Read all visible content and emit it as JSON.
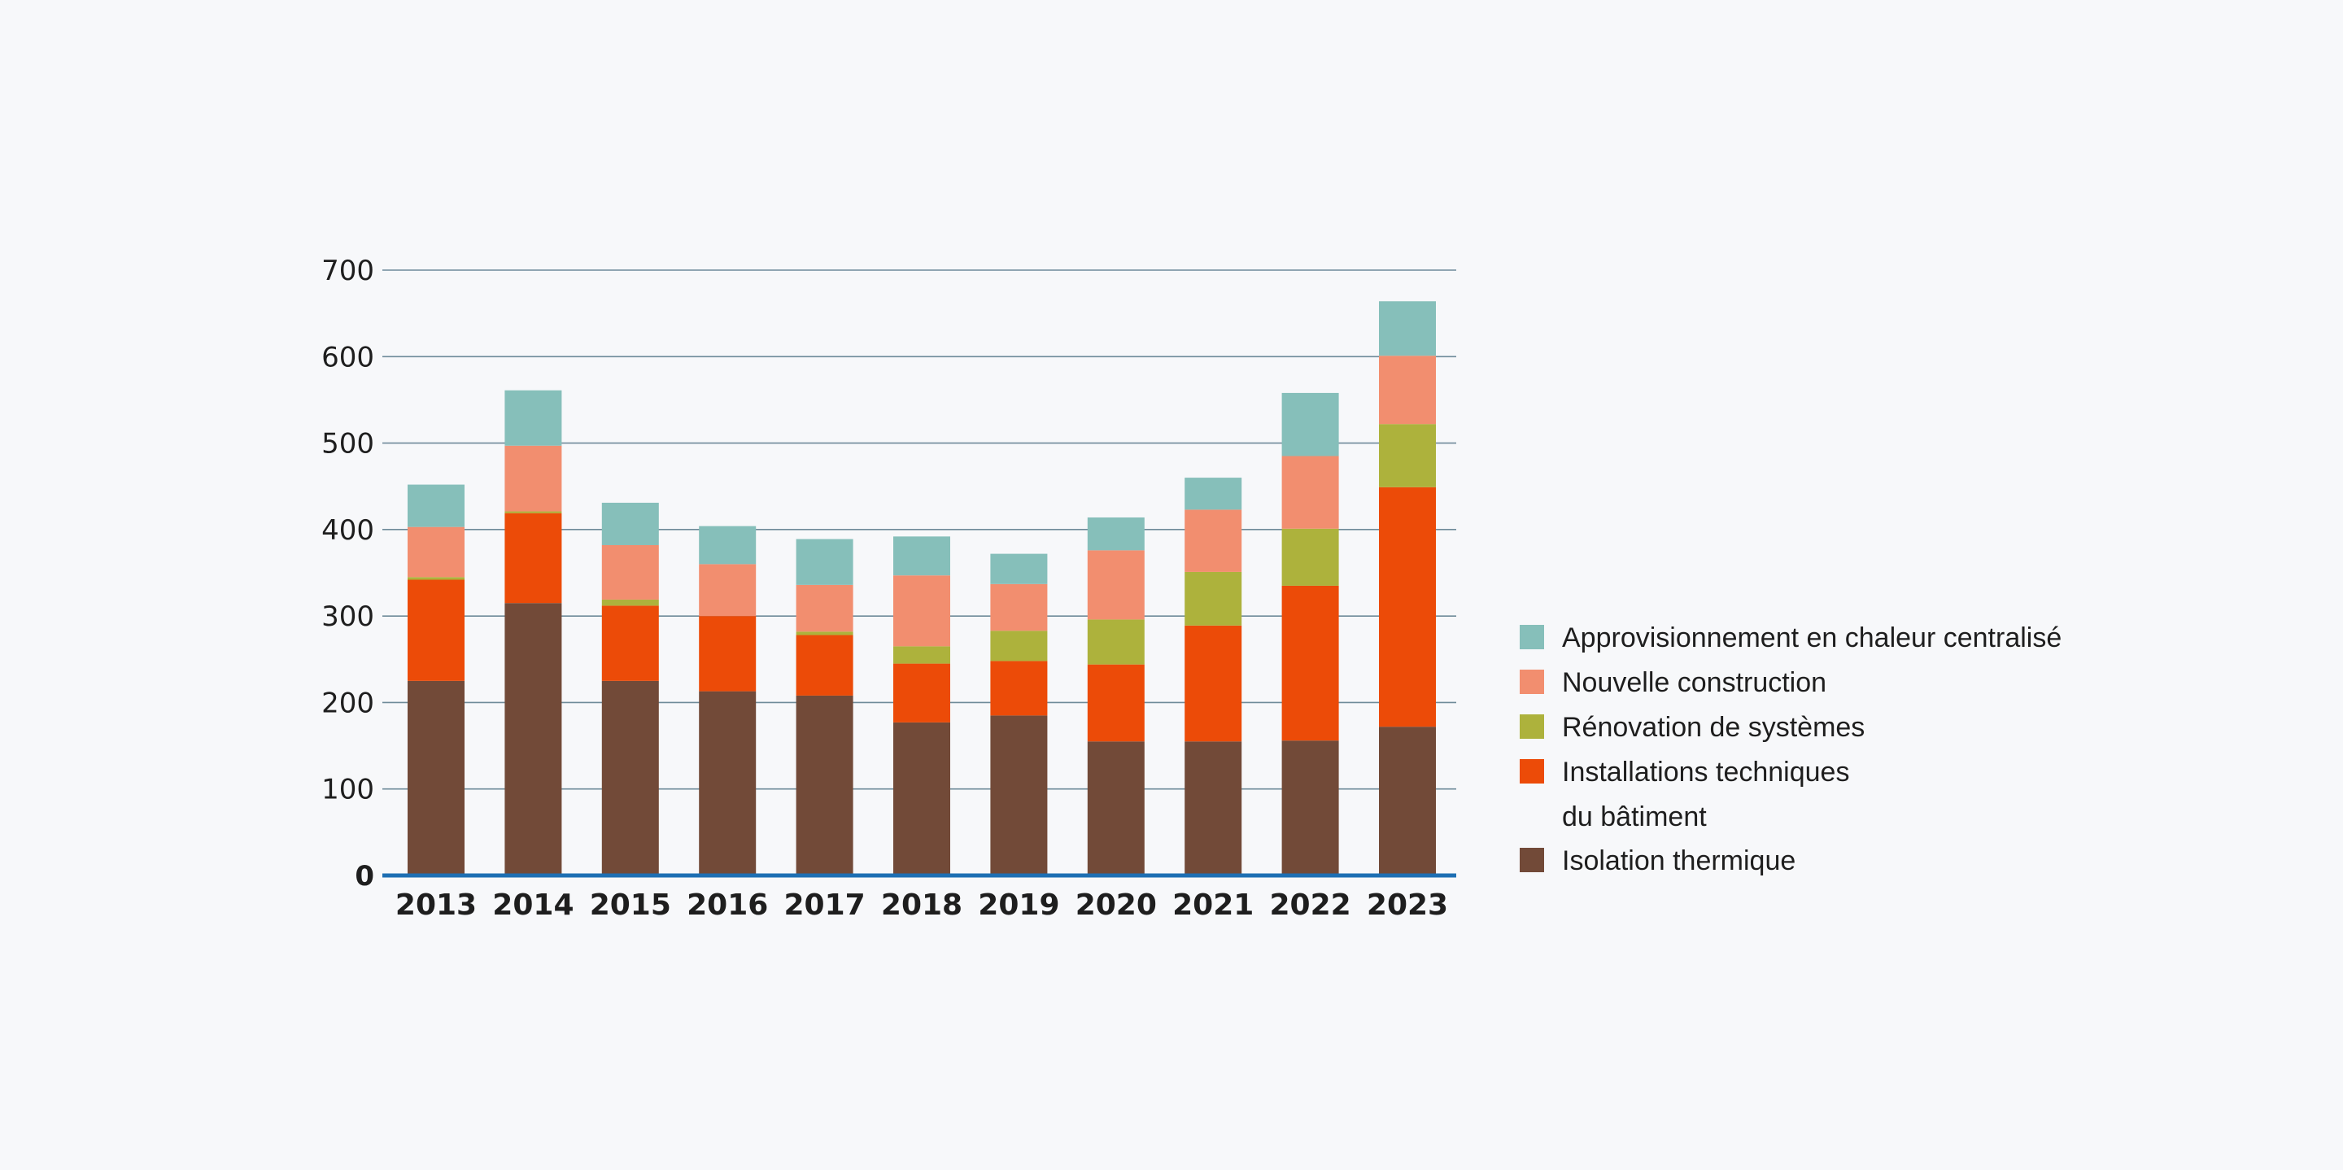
{
  "chart_data": {
    "type": "bar",
    "stacked": true,
    "categories": [
      "2013",
      "2014",
      "2015",
      "2016",
      "2017",
      "2018",
      "2019",
      "2020",
      "2021",
      "2022",
      "2023"
    ],
    "series": [
      {
        "name": "Isolation thermique",
        "color": "#724a38",
        "values": [
          225,
          315,
          225,
          213,
          208,
          177,
          185,
          155,
          155,
          156,
          172
        ]
      },
      {
        "name": "Installations techniques du bâtiment",
        "color": "#ec4b08",
        "values": [
          117,
          104,
          87,
          87,
          70,
          68,
          63,
          89,
          134,
          179,
          277
        ]
      },
      {
        "name": "Rénovation de systèmes",
        "color": "#adb23c",
        "values": [
          3,
          2,
          7,
          0,
          4,
          20,
          35,
          52,
          62,
          66,
          73
        ]
      },
      {
        "name": "Nouvelle construction",
        "color": "#f28e6f",
        "values": [
          58,
          76,
          63,
          60,
          54,
          82,
          54,
          80,
          72,
          84,
          79
        ]
      },
      {
        "name": "Approvisionnement en chaleur centralisé",
        "color": "#86bfba",
        "values": [
          49,
          64,
          49,
          44,
          53,
          45,
          35,
          38,
          37,
          73,
          63
        ]
      }
    ],
    "legend": [
      {
        "label": [
          "Approvisionnement en chaleur centralisé"
        ],
        "color": "#86bfba"
      },
      {
        "label": [
          "Nouvelle construction"
        ],
        "color": "#f28e6f"
      },
      {
        "label": [
          "Rénovation de systèmes"
        ],
        "color": "#adb23c"
      },
      {
        "label": [
          "Installations techniques",
          "du bâtiment"
        ],
        "color": "#ec4b08"
      },
      {
        "label": [
          "Isolation thermique"
        ],
        "color": "#724a38"
      }
    ],
    "legend_position": "right",
    "yticks": [
      "0",
      "100",
      "200",
      "300",
      "400",
      "500",
      "600",
      "700"
    ],
    "ylim": [
      0,
      700
    ],
    "grid": true,
    "gridline_color": "#6e8a99",
    "baseline_color": "#1d6fb3",
    "title": "",
    "xlabel": "",
    "ylabel": ""
  }
}
